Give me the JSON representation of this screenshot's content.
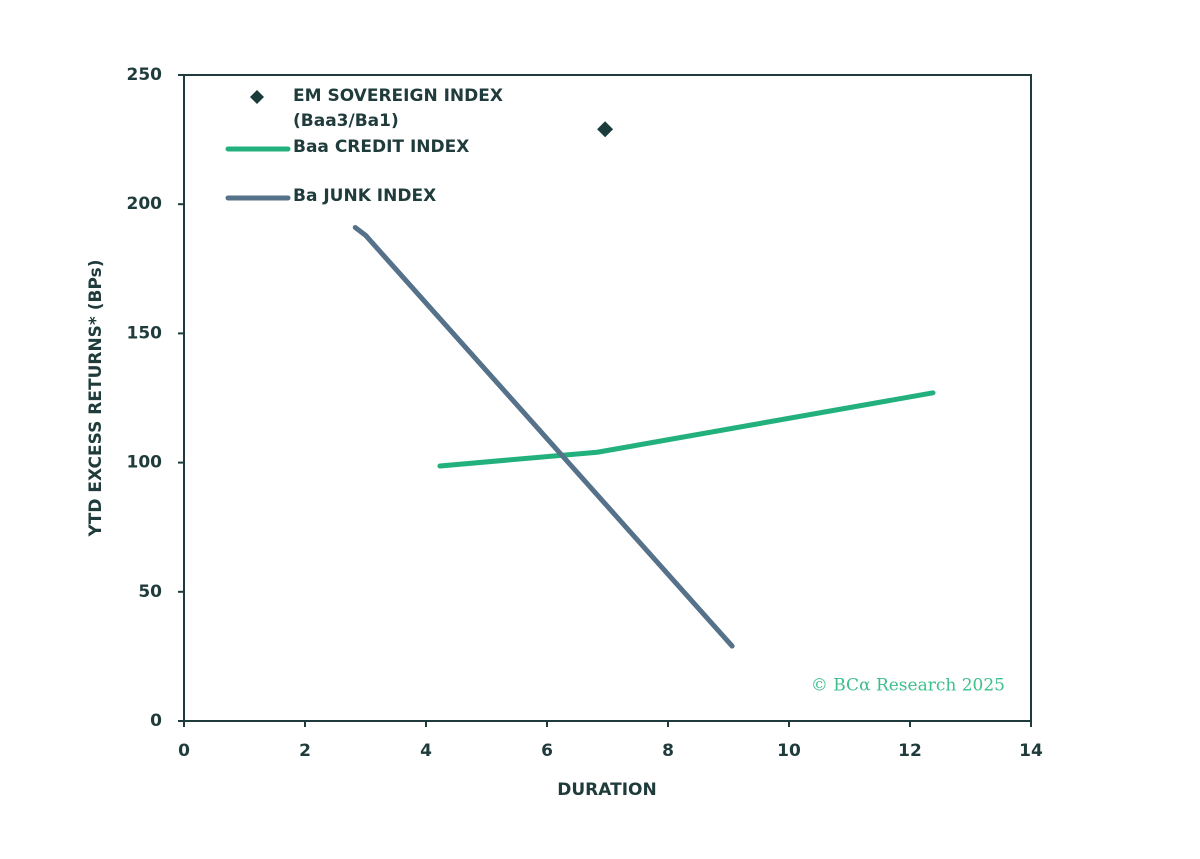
{
  "chart_data": {
    "type": "line",
    "x_label": "DURATION",
    "y_label": "YTD EXCESS RETURNS* (BPs)",
    "watermark": "© BCα Research 2025",
    "xlim": [
      0,
      14
    ],
    "xticks": [
      0,
      2,
      4,
      6,
      8,
      10,
      12,
      14
    ],
    "ylim": [
      0,
      250
    ],
    "yticks": [
      0,
      50,
      100,
      150,
      200,
      250
    ],
    "legend": "upper left",
    "series": [
      {
        "name": "EM SOVEREIGN INDEX\n(Baa3/Ba1)",
        "type": "scatter",
        "color": "#1c3c3c",
        "x": [
          6.96
        ],
        "values": [
          229
        ]
      },
      {
        "name": "Baa CREDIT INDEX",
        "type": "line",
        "color": "#22b07d",
        "x": [
          4.23,
          6.83,
          12.38
        ],
        "values": [
          98.7,
          104,
          127
        ]
      },
      {
        "name": "Ba JUNK INDEX",
        "type": "line",
        "color": "#56718a",
        "x": [
          2.83,
          3.0,
          9.06
        ],
        "values": [
          191,
          188,
          29
        ]
      }
    ]
  }
}
